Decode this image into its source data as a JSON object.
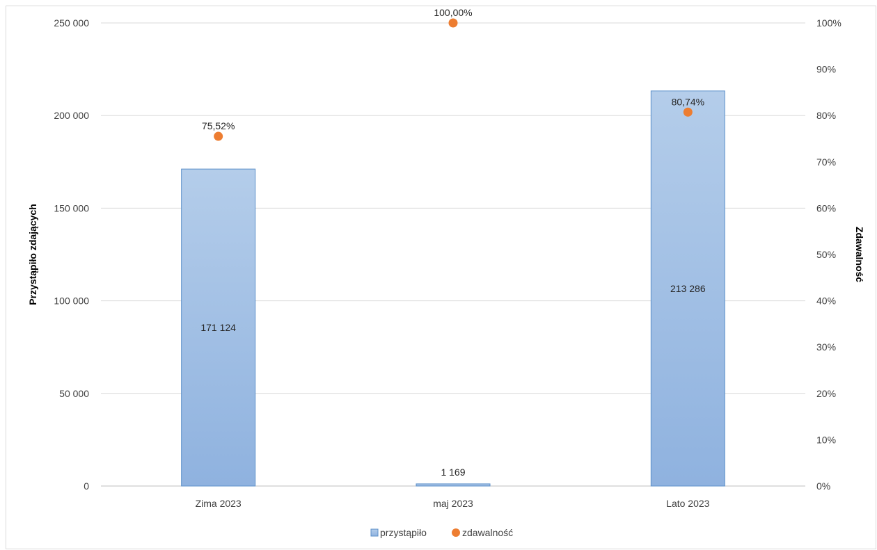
{
  "chart_data": {
    "type": "bar",
    "categories": [
      "Zima 2023",
      "maj 2023",
      "Lato 2023"
    ],
    "series": [
      {
        "name": "przystąpiło",
        "type": "bar",
        "axis": "left",
        "values": [
          171124,
          1169,
          213286
        ],
        "labels": [
          "171 124",
          "1 169",
          "213 286"
        ],
        "color": "#9dbde3"
      },
      {
        "name": "zdawalność",
        "type": "scatter",
        "axis": "right",
        "values": [
          75.52,
          100.0,
          80.74
        ],
        "labels": [
          "75,52%",
          "100,00%",
          "80,74%"
        ],
        "color": "#ed7d31"
      }
    ],
    "ylabel": "Przystąpiło zdających",
    "y2label": "Zdawalność",
    "ylim": [
      0,
      250000
    ],
    "y2lim": [
      0,
      100
    ],
    "yticks": [
      "0",
      "50 000",
      "100 000",
      "150 000",
      "200 000",
      "250 000"
    ],
    "y2ticks": [
      "0%",
      "10%",
      "20%",
      "30%",
      "40%",
      "50%",
      "60%",
      "70%",
      "80%",
      "90%",
      "100%"
    ],
    "grid": true,
    "legend_position": "bottom"
  }
}
